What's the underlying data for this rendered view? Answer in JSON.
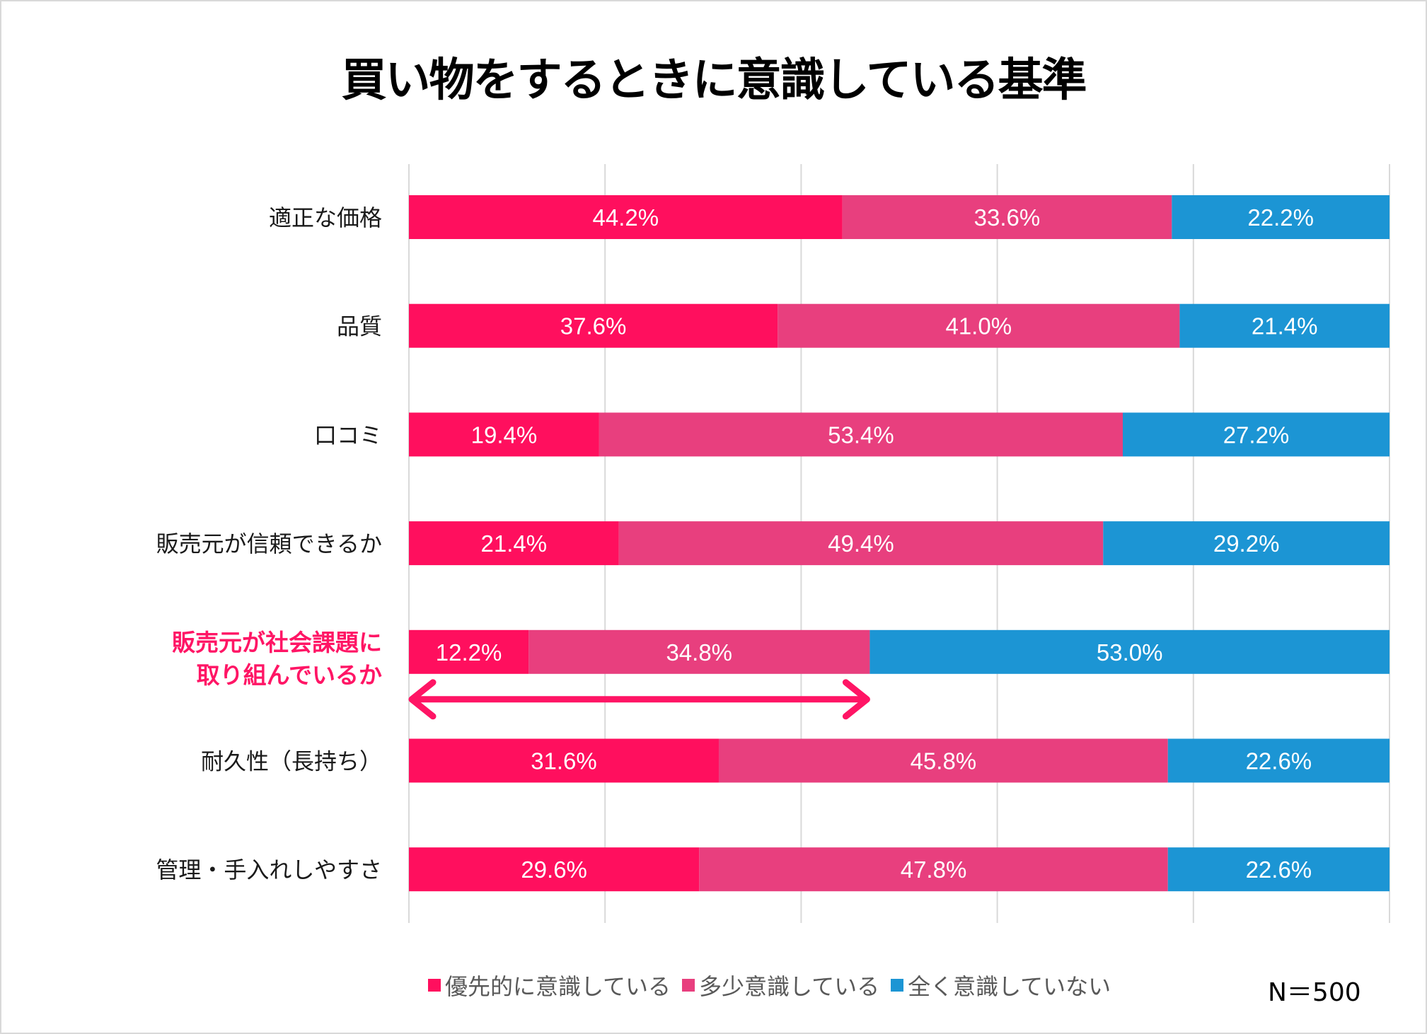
{
  "chart_data": {
    "type": "bar",
    "orientation": "horizontal",
    "stacked": true,
    "percent_stacked": true,
    "title": "買い物をするときに意識している基準",
    "xlabel": "",
    "ylabel": "",
    "xlim": [
      0,
      100
    ],
    "grid": true,
    "legend_position": "bottom",
    "categories": [
      "適正な価格",
      "品質",
      "口コミ",
      "販売元が信頼できるか",
      "販売元が社会課題に取り組んでいるか",
      "耐久性（長持ち）",
      "管理・手入れしやすさ"
    ],
    "category_label_lines": [
      [
        "適正な価格"
      ],
      [
        "品質"
      ],
      [
        "口コミ"
      ],
      [
        "販売元が信頼できるか"
      ],
      [
        "販売元が社会課題に",
        "取り組んでいるか"
      ],
      [
        "耐久性（長持ち）"
      ],
      [
        "管理・手入れしやすさ"
      ]
    ],
    "highlighted_category_index": 4,
    "series": [
      {
        "name": "優先的に意識している",
        "color": "#ff0f5e",
        "values": [
          44.2,
          37.6,
          19.4,
          21.4,
          12.2,
          31.6,
          29.6
        ]
      },
      {
        "name": "多少意識している",
        "color": "#e83f7e",
        "values": [
          33.6,
          41.0,
          53.4,
          49.4,
          34.8,
          45.8,
          47.8
        ]
      },
      {
        "name": "全く意識していない",
        "color": "#1c95d4",
        "values": [
          22.2,
          21.4,
          27.2,
          29.2,
          53.0,
          22.6,
          22.6
        ]
      }
    ],
    "value_format": "%",
    "annotations": [
      {
        "type": "double-arrow",
        "on_category": "販売元が社会課題に取り組んでいるか",
        "from_value": 0,
        "to_value": 47.0,
        "color": "#ff1565",
        "meaning": "優先的 + 多少 (47.0%)"
      }
    ],
    "note": "N＝500"
  },
  "colors": {
    "highlight": "#ff1565",
    "grid": "#d9d9d9",
    "border": "#d9d9d9"
  }
}
